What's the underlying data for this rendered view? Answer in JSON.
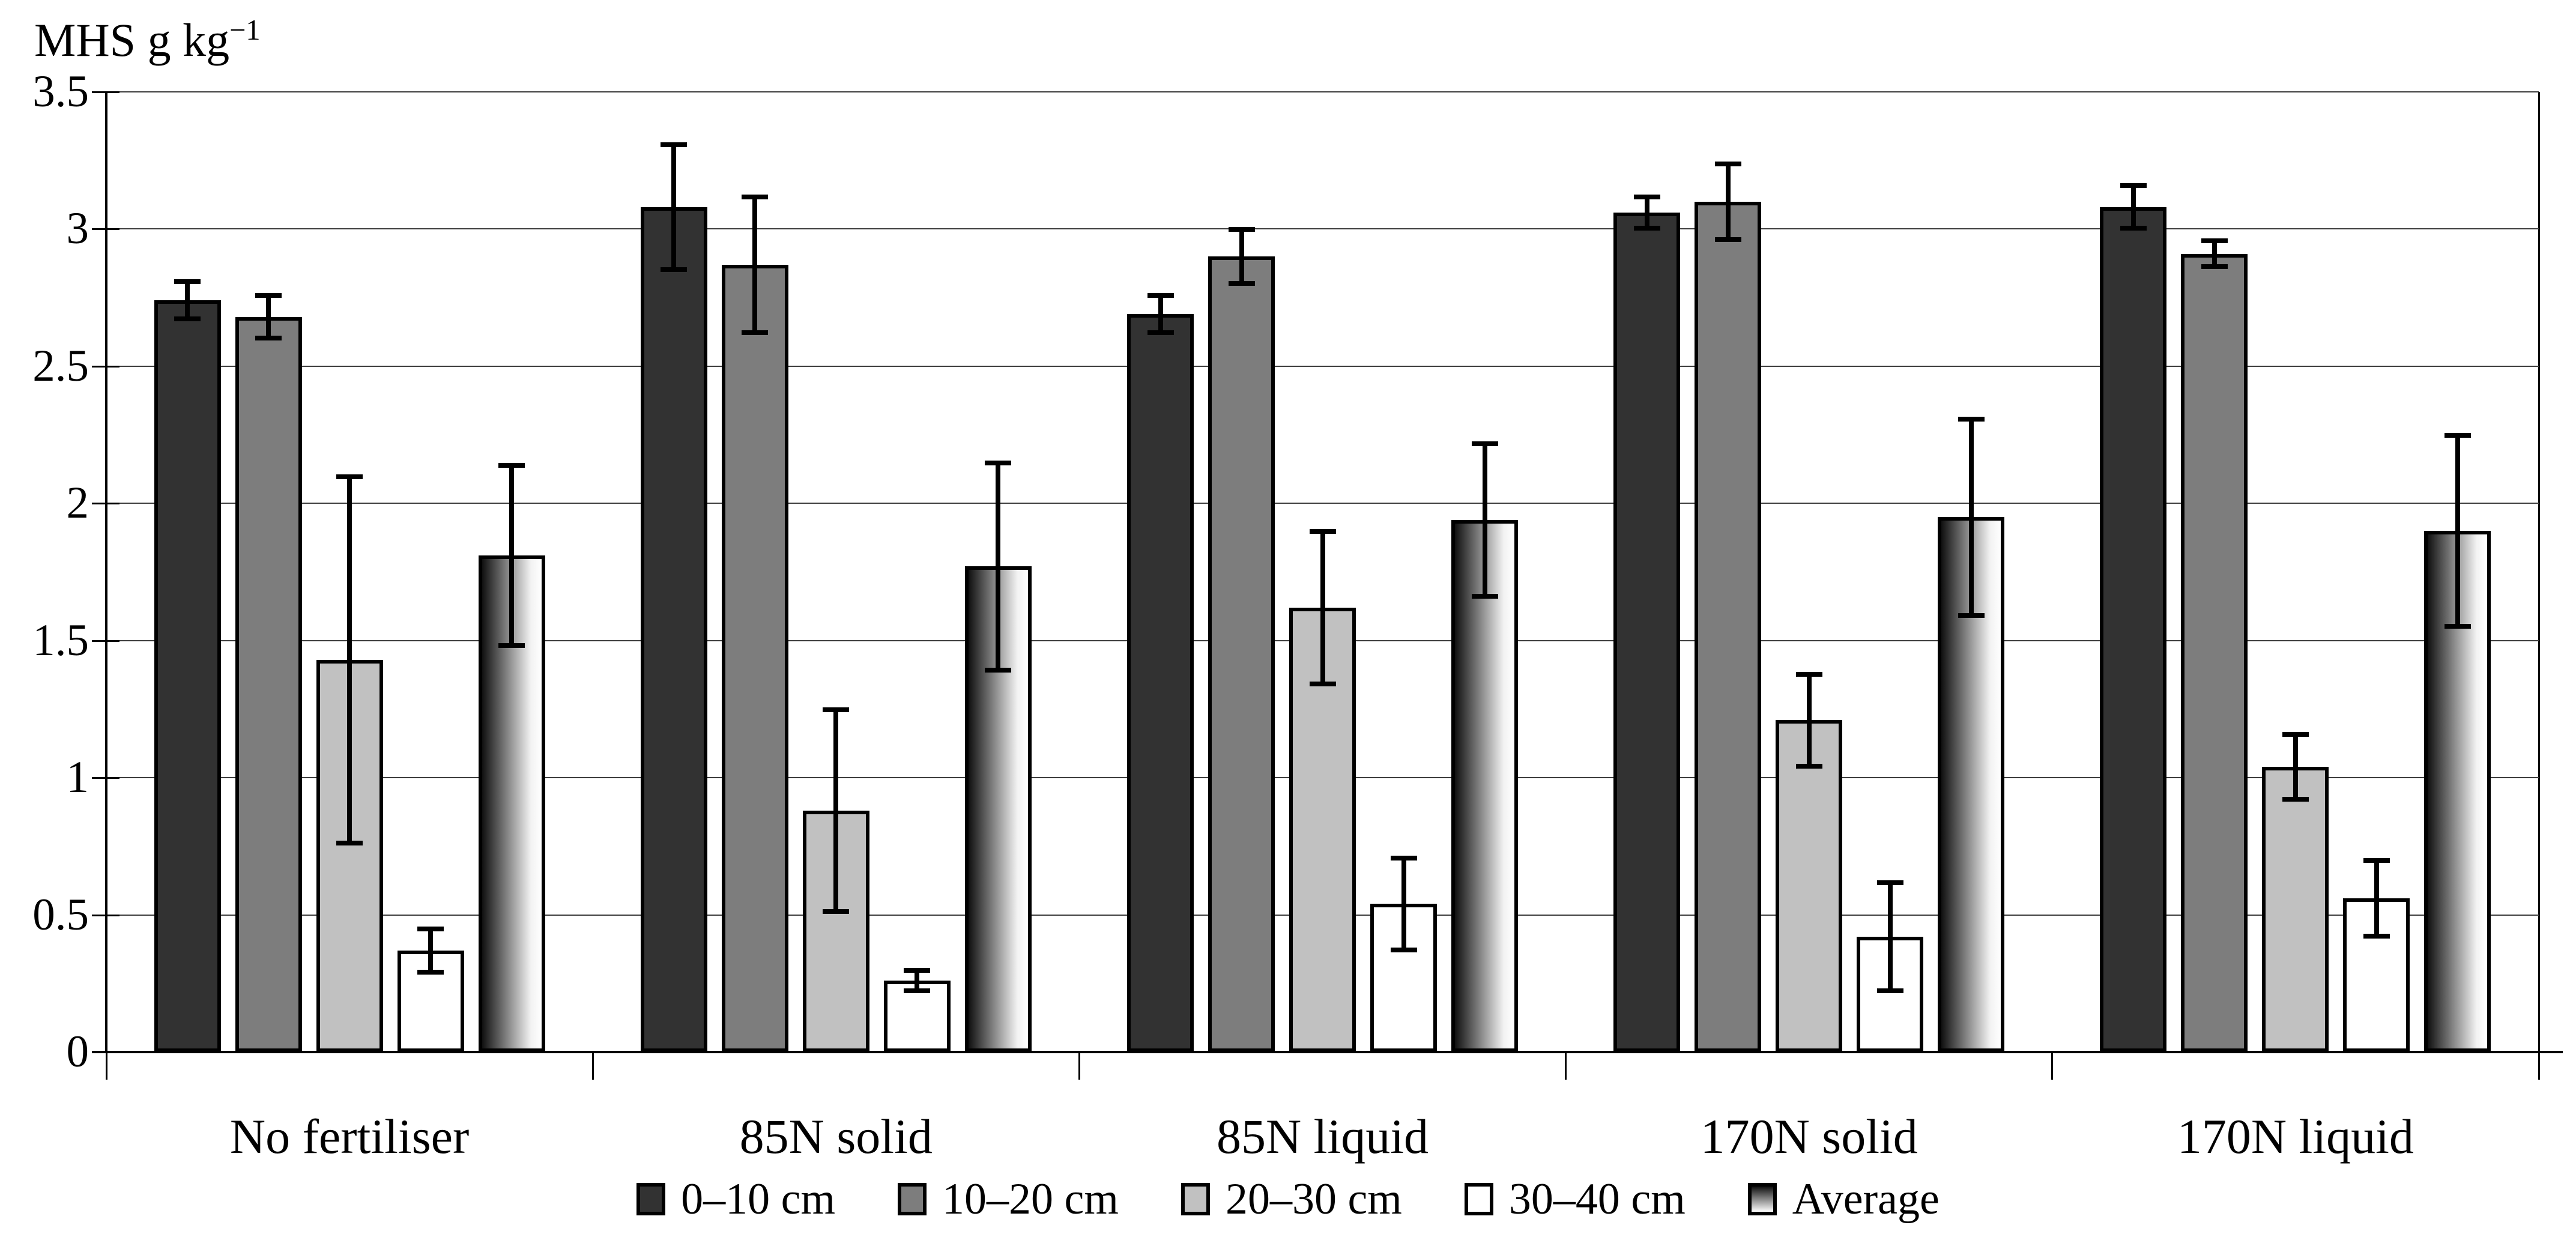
{
  "page": {
    "background": "#ffffff"
  },
  "colors": {
    "axis": "#000000",
    "grid": "#3d3d3d",
    "text": "#000000",
    "series_0_10": "#323232",
    "series_10_20": "#7d7d7d",
    "series_20_30": "#c1c1c1",
    "series_30_40": "#ffffff",
    "series_average_from": "#101010",
    "series_average_to": "#ffffff"
  },
  "chart_data": {
    "type": "bar",
    "ylabel": "MHS g kg−1",
    "ylabel_base": "MHS g kg",
    "ylabel_exponent": "−1",
    "xlabel": "",
    "categories": [
      "No fertiliser",
      "85N solid",
      "85N liquid",
      "170N solid",
      "170N liquid"
    ],
    "series": [
      {
        "name": "0–10 cm",
        "fill": "#323232",
        "values": [
          2.74,
          3.08,
          2.69,
          3.06,
          3.08
        ],
        "errors": [
          0.07,
          0.23,
          0.07,
          0.06,
          0.08
        ]
      },
      {
        "name": "10–20 cm",
        "fill": "#7d7d7d",
        "values": [
          2.68,
          2.87,
          2.9,
          3.1,
          2.91
        ],
        "errors": [
          0.08,
          0.25,
          0.1,
          0.14,
          0.05
        ]
      },
      {
        "name": "20–30 cm",
        "fill": "#c1c1c1",
        "values": [
          1.43,
          0.88,
          1.62,
          1.21,
          1.04
        ],
        "errors": [
          0.67,
          0.37,
          0.28,
          0.17,
          0.12
        ]
      },
      {
        "name": "30–40 cm",
        "fill": "#ffffff",
        "values": [
          0.37,
          0.26,
          0.54,
          0.42,
          0.56
        ],
        "errors": [
          0.08,
          0.04,
          0.17,
          0.2,
          0.14
        ]
      },
      {
        "name": "Average",
        "gradient": {
          "from": "#101010",
          "to": "#ffffff"
        },
        "values": [
          1.81,
          1.77,
          1.94,
          1.95,
          1.9
        ],
        "errors": [
          0.33,
          0.38,
          0.28,
          0.36,
          0.35
        ]
      }
    ],
    "ylim": [
      0,
      3.5
    ],
    "yticks": [
      0,
      0.5,
      1,
      1.5,
      2,
      2.5,
      3,
      3.5
    ],
    "ytick_labels": [
      "0",
      "0.5",
      "1",
      "1.5",
      "2",
      "2.5",
      "3",
      "3.5"
    ],
    "grid": true,
    "error_bars": true,
    "legend_position": "bottom"
  }
}
